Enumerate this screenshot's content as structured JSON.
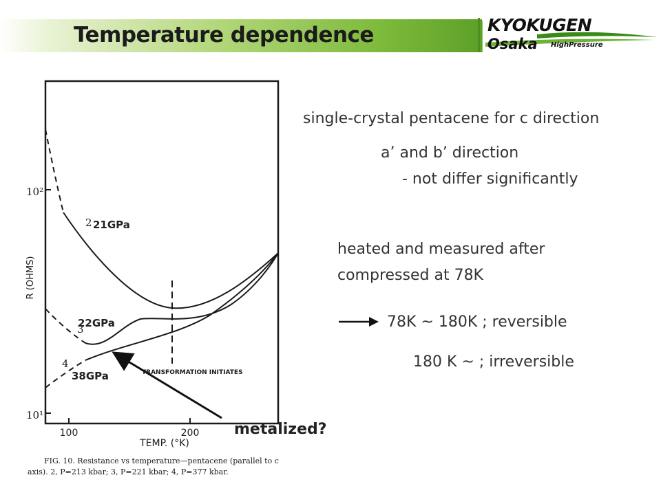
{
  "slide": {
    "title": "Temperature dependence",
    "logo": {
      "line1": "KYOKUGEN",
      "line2": "Osaka",
      "line3": "HighPressure"
    }
  },
  "figure": {
    "y_axis_label": "R (OHMS)",
    "y_tick_top": "10²",
    "y_tick_bottom": "10¹",
    "x_tick_100": "100",
    "x_tick_200": "200",
    "x_axis_label": "TEMP. (°K)",
    "annotation": "TRANSFORMATION INITIATES",
    "curve_labels": [
      "2",
      "3",
      "4"
    ],
    "caption_line1": "FIG. 10. Resistance vs temperature—pentacene (parallel to c",
    "caption_line2": "axis). 2, P=213 kbar; 3, P=221 kbar; 4, P=377 kbar."
  },
  "pressure_labels": [
    "21GPa",
    "22GPa",
    "38GPa"
  ],
  "metalized_label": "metalized?",
  "notes": {
    "line1": "single-crystal pentacene for c direction",
    "line2": "a’ and b’ direction",
    "line3": "- not differ significantly",
    "line4": "heated and measured after",
    "line5": "compressed at 78K",
    "line6": "78K ~ 180K ; reversible",
    "line7": "180 K ~ ; irreversible"
  },
  "colors": {
    "title_band": "#7cb93a",
    "text": "#333333"
  }
}
